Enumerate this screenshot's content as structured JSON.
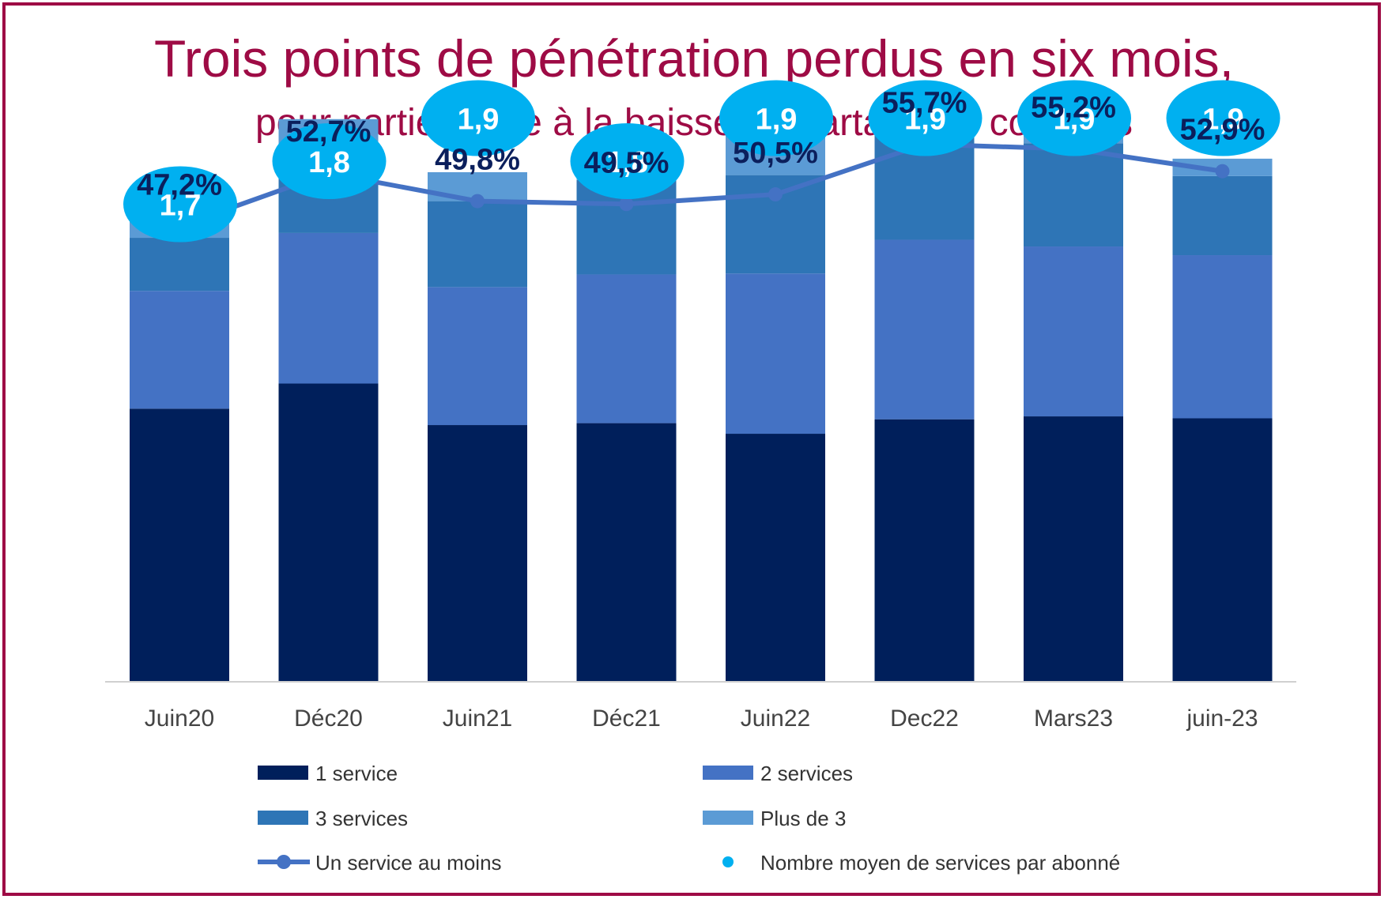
{
  "chart_data": {
    "type": "bar",
    "stacked": true,
    "title": "Trois points de pénétration perdus en six mois,",
    "subtitle": "pour partie grâce à la baisse du partage de comptes",
    "categories": [
      "Juin20",
      "Déc20",
      "Juin21",
      "Déc21",
      "Juin22",
      "Dec22",
      "Mars23",
      "juin-23"
    ],
    "ylim": [
      0,
      60
    ],
    "grid": false,
    "legend_position": "bottom",
    "series": [
      {
        "name": "1 service",
        "color": "#001f5b",
        "values": [
          28.3,
          30.9,
          26.6,
          26.8,
          25.7,
          27.2,
          27.5,
          27.3
        ]
      },
      {
        "name": "2 services",
        "color": "#4472c4",
        "values": [
          12.2,
          15.6,
          14.3,
          15.4,
          16.6,
          18.6,
          17.6,
          16.9
        ]
      },
      {
        "name": "3 services",
        "color": "#2e75b6",
        "values": [
          5.5,
          7.4,
          8.9,
          9.8,
          10.2,
          11.2,
          10.7,
          8.2
        ]
      },
      {
        "name": "Plus de 3",
        "color": "#5b9bd5",
        "values": [
          3.8,
          4.4,
          3.0,
          3.2,
          4.8,
          3.2,
          2.9,
          1.8
        ]
      }
    ],
    "line_series": {
      "name": "Un service au moins",
      "color": "#4472c4",
      "values": [
        47.2,
        52.7,
        49.8,
        49.5,
        50.5,
        55.7,
        55.2,
        52.9
      ],
      "labels": [
        "47,2%",
        "52,7%",
        "49,8%",
        "49,5%",
        "50,5%",
        "55,7%",
        "55,2%",
        "52,9%"
      ]
    },
    "bubble_series": {
      "name": "Nombre moyen de services par abonné",
      "color": "#00b0f0",
      "values": [
        1.7,
        1.8,
        1.9,
        1.8,
        1.9,
        1.9,
        1.9,
        1.9
      ],
      "labels": [
        "1,7",
        "1,8",
        "1,9",
        "1,8",
        "1,9",
        "1,9",
        "1,9",
        "1,9"
      ]
    }
  }
}
